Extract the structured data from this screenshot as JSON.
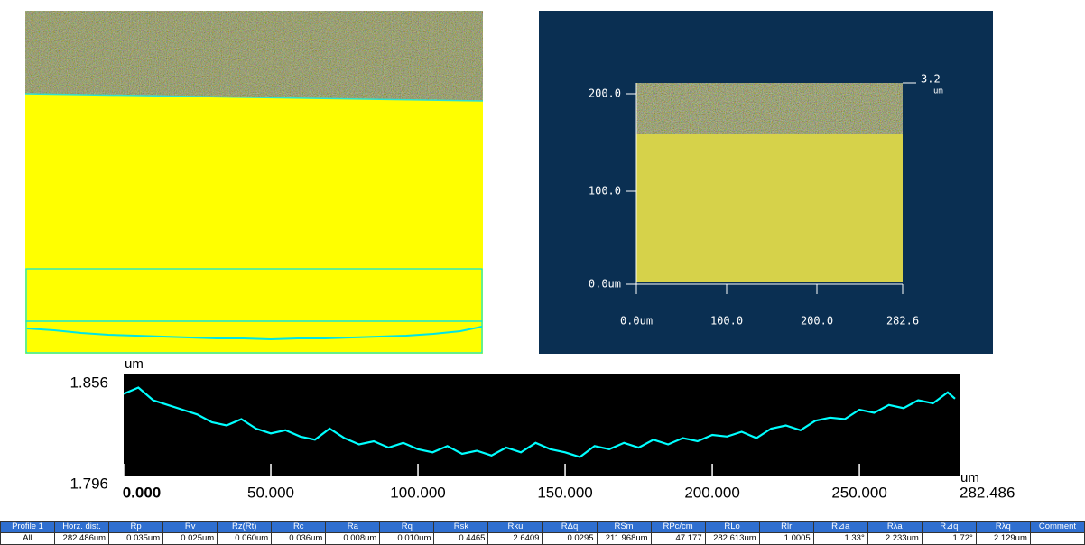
{
  "chart_data": {
    "type": "line",
    "y_label": "um",
    "x_label": "um",
    "x_end_label": {
      "value": 282.486,
      "label": "282.486"
    },
    "xlim": [
      0,
      282.486
    ],
    "ylim": [
      1.796,
      1.856
    ],
    "yticks": [
      1.856,
      1.796
    ],
    "xticks": [
      {
        "value": 0,
        "label": "0.000"
      },
      {
        "value": 50,
        "label": "50.000"
      },
      {
        "value": 100,
        "label": "100.000"
      },
      {
        "value": 150,
        "label": "150.000"
      },
      {
        "value": 200,
        "label": "200.000"
      },
      {
        "value": 250,
        "label": "250.000"
      }
    ],
    "series": [
      {
        "color": "#00ffff",
        "x": [
          0,
          5,
          10,
          15,
          20,
          25,
          30,
          35,
          40,
          45,
          50,
          55,
          60,
          65,
          70,
          75,
          80,
          85,
          90,
          95,
          100,
          105,
          110,
          115,
          120,
          125,
          130,
          135,
          140,
          145,
          150,
          155,
          160,
          165,
          170,
          175,
          180,
          185,
          190,
          195,
          200,
          205,
          210,
          215,
          220,
          225,
          230,
          235,
          240,
          245,
          250,
          255,
          260,
          265,
          270,
          275,
          280,
          282.486
        ],
        "values": [
          1.846,
          1.85,
          1.842,
          1.839,
          1.836,
          1.833,
          1.828,
          1.826,
          1.83,
          1.824,
          1.821,
          1.823,
          1.819,
          1.817,
          1.824,
          1.818,
          1.814,
          1.816,
          1.812,
          1.815,
          1.811,
          1.809,
          1.813,
          1.808,
          1.81,
          1.807,
          1.812,
          1.809,
          1.815,
          1.811,
          1.809,
          1.806,
          1.813,
          1.811,
          1.815,
          1.812,
          1.817,
          1.814,
          1.818,
          1.816,
          1.82,
          1.819,
          1.822,
          1.818,
          1.824,
          1.826,
          1.823,
          1.829,
          1.831,
          1.83,
          1.836,
          1.834,
          1.839,
          1.837,
          1.842,
          1.84,
          1.847,
          1.843
        ]
      }
    ],
    "background": "#000000"
  },
  "surface_view": {
    "y_labels": [
      "200.0",
      "100.0",
      "0.0um"
    ],
    "x_labels": [
      "0.0um",
      "100.0",
      "200.0",
      "282.6"
    ],
    "z_value": "3.2",
    "z_unit": "um"
  },
  "table": {
    "header": [
      "Profile 1",
      "Horz. dist.",
      "Rp",
      "Rv",
      "Rz(Rt)",
      "Rc",
      "Ra",
      "Rq",
      "Rsk",
      "Rku",
      "RΔq",
      "RSm",
      "RPc/cm",
      "RLo",
      "Rlr",
      "R⊿a",
      "Rλa",
      "R⊿q",
      "Rλq",
      "Comment"
    ],
    "rows": [
      [
        "All",
        "282.486um",
        "0.035um",
        "0.025um",
        "0.060um",
        "0.036um",
        "0.008um",
        "0.010um",
        "0.4465",
        "2.6409",
        "0.0295",
        "211.968um",
        "47.177",
        "282.613um",
        "1.0005",
        "1.33°",
        "2.233um",
        "1.72°",
        "2.129um"
      ]
    ]
  }
}
